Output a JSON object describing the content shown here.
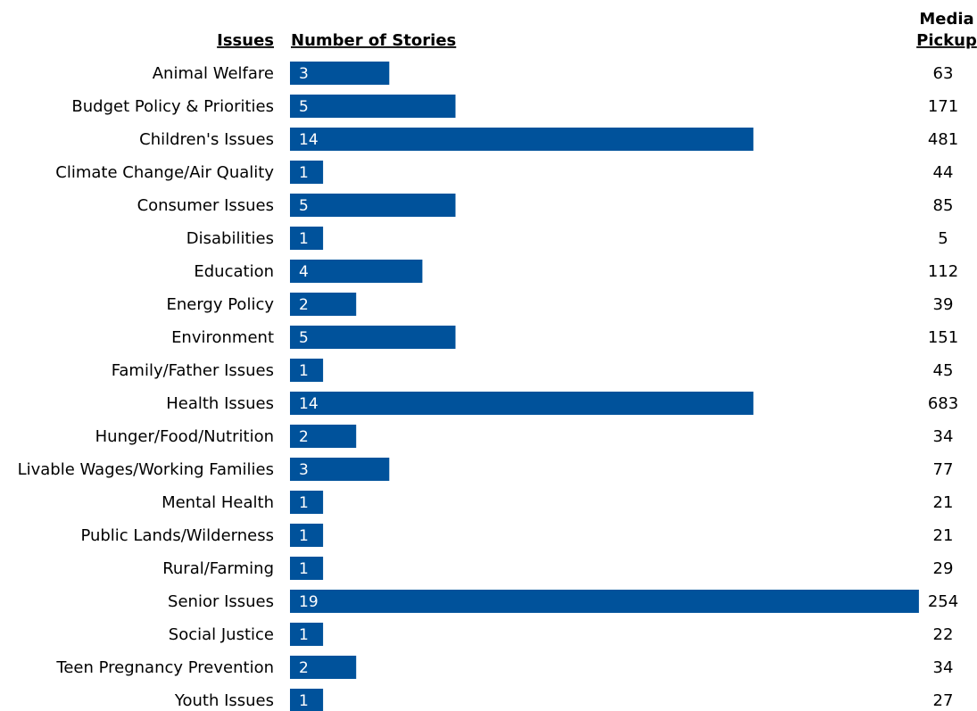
{
  "headers": {
    "issues": "Issues",
    "stories": "Number of Stories",
    "pickup_line1": "Media",
    "pickup_line2": "Pickup"
  },
  "colors": {
    "bar": "#00529b",
    "text": "#231f20",
    "bar_label": "#ffffff"
  },
  "chart_data": {
    "type": "bar",
    "orientation": "horizontal",
    "categories": [
      "Animal Welfare",
      "Budget Policy & Priorities",
      "Children's Issues",
      "Climate Change/Air Quality",
      "Consumer Issues",
      "Disabilities",
      "Education",
      "Energy Policy",
      "Environment",
      "Family/Father Issues",
      "Health Issues",
      "Hunger/Food/Nutrition",
      "Livable Wages/Working Families",
      "Mental Health",
      "Public Lands/Wilderness",
      "Rural/Farming",
      "Senior Issues",
      "Social Justice",
      "Teen Pregnancy Prevention",
      "Youth Issues"
    ],
    "series": [
      {
        "name": "Number of Stories",
        "values": [
          3,
          5,
          14,
          1,
          5,
          1,
          4,
          2,
          5,
          1,
          14,
          2,
          3,
          1,
          1,
          1,
          19,
          1,
          2,
          1
        ]
      }
    ],
    "media_pickup": [
      63,
      171,
      481,
      44,
      85,
      5,
      112,
      39,
      151,
      45,
      683,
      34,
      77,
      21,
      21,
      29,
      254,
      22,
      34,
      27
    ],
    "xlim": [
      0,
      19
    ],
    "grid": false,
    "legend": "none"
  }
}
